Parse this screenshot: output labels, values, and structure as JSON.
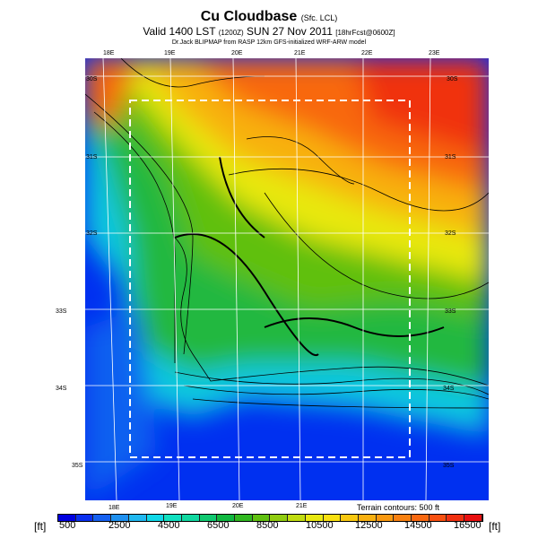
{
  "title": {
    "main": "Cu Cloudbase",
    "sub": "(Sfc. LCL)",
    "valid": "Valid 1400 LST",
    "zulu": "(1200Z)",
    "date": "SUN 27 Nov 2011",
    "fcst": "[18hrFcst@0600Z]",
    "model": "Dr.Jack BLIPMAP from RASP 12km GFS-initialized WRF-ARW model"
  },
  "map": {
    "lon_top": [
      "18E",
      "19E",
      "20E",
      "21E",
      "22E",
      "23E"
    ],
    "lon_bottom": [
      "18E",
      "19E",
      "20E",
      "21E"
    ],
    "lat": [
      "30S",
      "31S",
      "32S",
      "33S",
      "34S",
      "35S"
    ],
    "terrain_note": "Terrain contours: 500 ft"
  },
  "colorbar": {
    "unit": "[ft]",
    "labels": [
      "500",
      "2500",
      "4500",
      "6500",
      "8500",
      "10500",
      "12500",
      "14500",
      "16500"
    ],
    "colors": [
      "#0000e0",
      "#0a30f0",
      "#1560f0",
      "#1e90f0",
      "#20b8f0",
      "#10d8e8",
      "#10e0c0",
      "#10d8a0",
      "#10c870",
      "#10b840",
      "#30b820",
      "#60c010",
      "#90cc10",
      "#c0dc10",
      "#e8e810",
      "#f8e010",
      "#f8c810",
      "#f8b010",
      "#f89810",
      "#f88010",
      "#f86810",
      "#f85010",
      "#f03010",
      "#e81010"
    ]
  }
}
